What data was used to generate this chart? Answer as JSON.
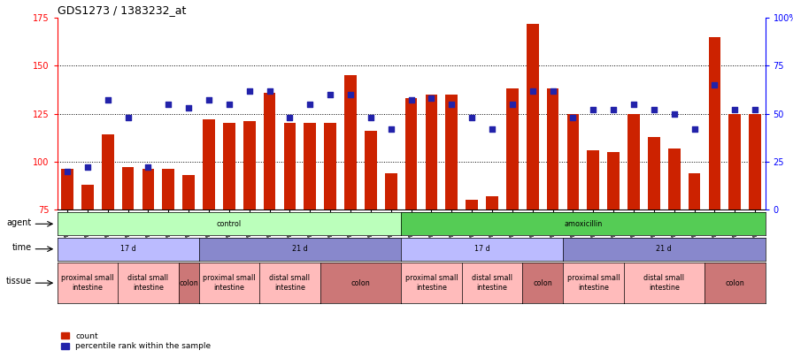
{
  "title": "GDS1273 / 1383232_at",
  "samples": [
    "GSM42559",
    "GSM42561",
    "GSM42563",
    "GSM42553",
    "GSM42555",
    "GSM42557",
    "GSM42548",
    "GSM42550",
    "GSM42560",
    "GSM42562",
    "GSM42564",
    "GSM42554",
    "GSM42556",
    "GSM42558",
    "GSM42549",
    "GSM42551",
    "GSM42552",
    "GSM42541",
    "GSM42543",
    "GSM42546",
    "GSM42534",
    "GSM42536",
    "GSM42539",
    "GSM42527",
    "GSM42529",
    "GSM42532",
    "GSM42542",
    "GSM42544",
    "GSM42547",
    "GSM42535",
    "GSM42537",
    "GSM42540",
    "GSM42528",
    "GSM42530",
    "GSM42533"
  ],
  "count": [
    96,
    88,
    114,
    97,
    96,
    96,
    93,
    122,
    120,
    121,
    136,
    120,
    120,
    120,
    145,
    116,
    94,
    133,
    135,
    135,
    80,
    82,
    138,
    172,
    138,
    125,
    106,
    105,
    125,
    113,
    107,
    94,
    165,
    125,
    125
  ],
  "percentile": [
    20,
    22,
    57,
    48,
    22,
    55,
    53,
    57,
    55,
    62,
    62,
    48,
    55,
    60,
    60,
    48,
    42,
    57,
    58,
    55,
    48,
    42,
    55,
    62,
    62,
    48,
    52,
    52,
    55,
    52,
    50,
    42,
    65,
    52,
    52
  ],
  "ylim_left": [
    75,
    175
  ],
  "ylim_right": [
    0,
    100
  ],
  "yticks_left": [
    75,
    100,
    125,
    150,
    175
  ],
  "yticks_right": [
    0,
    25,
    50,
    75,
    100
  ],
  "ytick_labels_right": [
    "0",
    "25",
    "50",
    "75",
    "100%"
  ],
  "hlines": [
    100,
    125,
    150
  ],
  "bar_color": "#cc2200",
  "dot_color": "#2222aa",
  "bg_color": "#ffffff",
  "agent_row": {
    "label": "agent",
    "segments": [
      {
        "text": "control",
        "start": 0,
        "end": 17,
        "color": "#bbffbb"
      },
      {
        "text": "amoxicillin",
        "start": 17,
        "end": 35,
        "color": "#55cc55"
      }
    ]
  },
  "time_row": {
    "label": "time",
    "segments": [
      {
        "text": "17 d",
        "start": 0,
        "end": 7,
        "color": "#bbbbff"
      },
      {
        "text": "21 d",
        "start": 7,
        "end": 17,
        "color": "#8888cc"
      },
      {
        "text": "17 d",
        "start": 17,
        "end": 25,
        "color": "#bbbbff"
      },
      {
        "text": "21 d",
        "start": 25,
        "end": 35,
        "color": "#8888cc"
      }
    ]
  },
  "tissue_row": {
    "label": "tissue",
    "segments": [
      {
        "text": "proximal small\nintestine",
        "start": 0,
        "end": 3,
        "color": "#ffbbbb"
      },
      {
        "text": "distal small\nintestine",
        "start": 3,
        "end": 6,
        "color": "#ffbbbb"
      },
      {
        "text": "colon",
        "start": 6,
        "end": 7,
        "color": "#cc7777"
      },
      {
        "text": "proximal small\nintestine",
        "start": 7,
        "end": 10,
        "color": "#ffbbbb"
      },
      {
        "text": "distal small\nintestine",
        "start": 10,
        "end": 13,
        "color": "#ffbbbb"
      },
      {
        "text": "colon",
        "start": 13,
        "end": 17,
        "color": "#cc7777"
      },
      {
        "text": "proximal small\nintestine",
        "start": 17,
        "end": 20,
        "color": "#ffbbbb"
      },
      {
        "text": "distal small\nintestine",
        "start": 20,
        "end": 23,
        "color": "#ffbbbb"
      },
      {
        "text": "colon",
        "start": 23,
        "end": 25,
        "color": "#cc7777"
      },
      {
        "text": "proximal small\nintestine",
        "start": 25,
        "end": 28,
        "color": "#ffbbbb"
      },
      {
        "text": "distal small\nintestine",
        "start": 28,
        "end": 32,
        "color": "#ffbbbb"
      },
      {
        "text": "colon",
        "start": 32,
        "end": 35,
        "color": "#cc7777"
      }
    ]
  }
}
